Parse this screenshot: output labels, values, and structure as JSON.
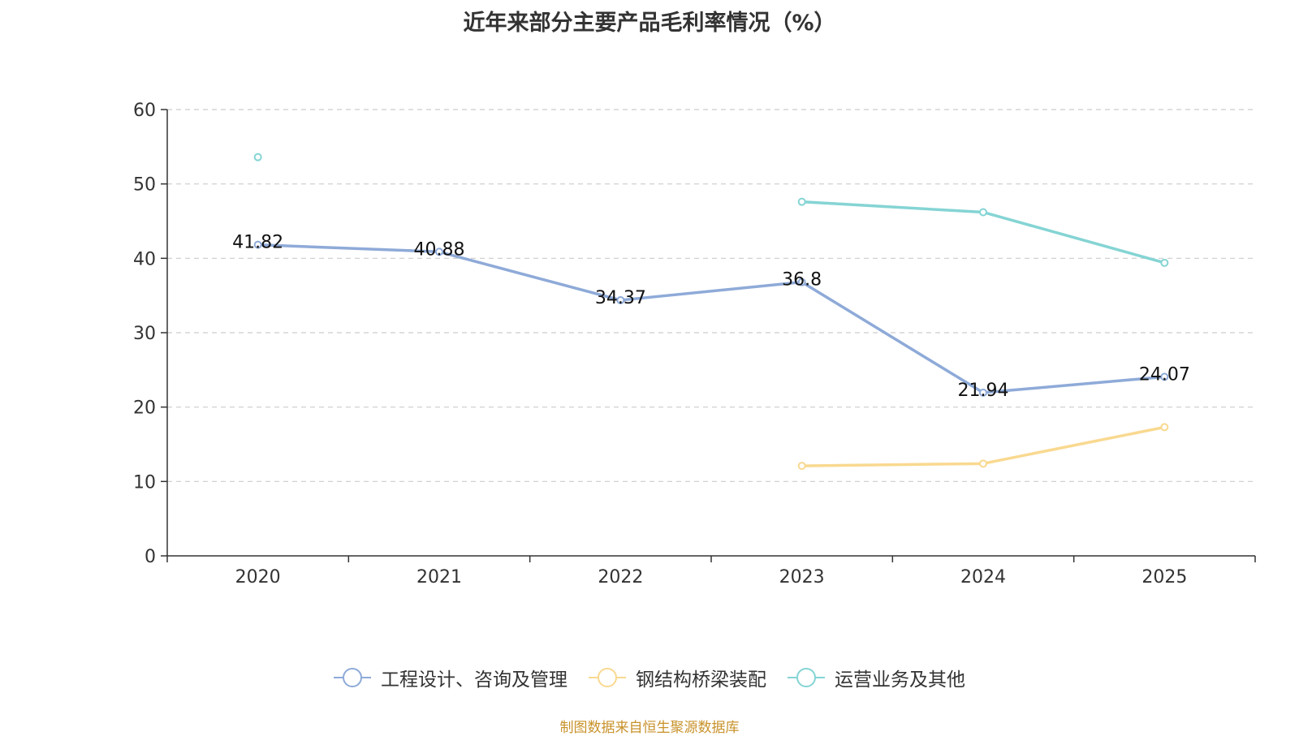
{
  "chart_data": {
    "type": "line",
    "title": "近年来部分主要产品毛利率情况（%）",
    "categories": [
      "2020",
      "2021",
      "2022",
      "2023",
      "2024",
      "2025"
    ],
    "y_ticks": [
      "0",
      "10",
      "20",
      "30",
      "40",
      "50",
      "60"
    ],
    "ylim": [
      0,
      60
    ],
    "grid": true,
    "legend_position": "bottom",
    "series": [
      {
        "name": "工程设计、咨询及管理",
        "color": "#8eaad8",
        "values": [
          41.82,
          40.88,
          34.37,
          36.8,
          21.94,
          24.07
        ],
        "labels": [
          "41.82",
          "40.88",
          "34.37",
          "36.8",
          "21.94",
          "24.07"
        ]
      },
      {
        "name": "钢结构桥梁装配",
        "color": "#f9d990",
        "values": [
          null,
          null,
          null,
          12.1,
          12.4,
          17.3
        ]
      },
      {
        "name": "运营业务及其他",
        "color": "#85d4d4",
        "values": [
          53.6,
          null,
          null,
          47.6,
          46.2,
          39.4
        ]
      }
    ]
  },
  "footer": {
    "source": "制图数据来自恒生聚源数据库"
  }
}
